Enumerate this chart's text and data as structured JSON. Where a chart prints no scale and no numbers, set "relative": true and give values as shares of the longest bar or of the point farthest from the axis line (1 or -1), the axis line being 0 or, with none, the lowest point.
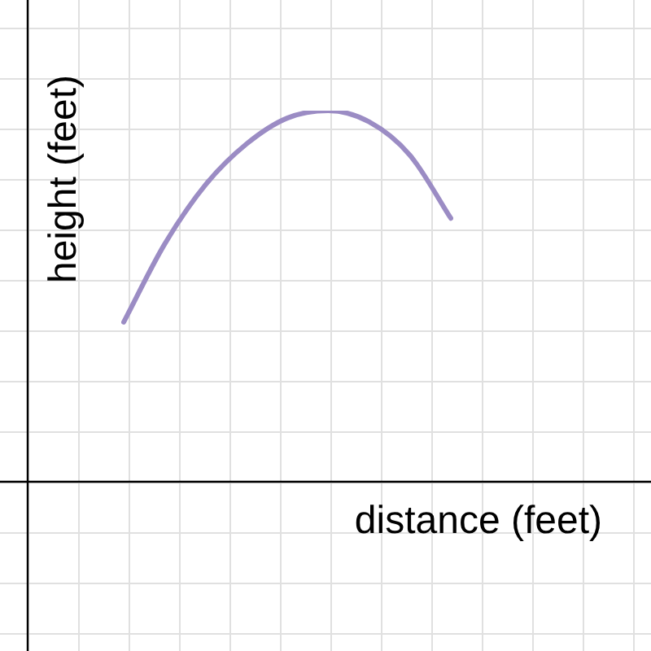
{
  "chart_data": {
    "type": "line",
    "relative": true,
    "xlabel": "distance (feet)",
    "ylabel": "height (feet)",
    "grid": true,
    "legend": false,
    "marker": "none",
    "line_style": "solid",
    "categories": [
      null,
      null,
      null,
      null,
      null,
      null,
      null,
      null,
      null
    ],
    "series": [
      {
        "color": "#9b8cc4",
        "values": [
          0.43,
          0.64,
          0.8,
          0.91,
          0.98,
          1,
          0.97,
          0.88,
          0.71
        ]
      }
    ]
  }
}
